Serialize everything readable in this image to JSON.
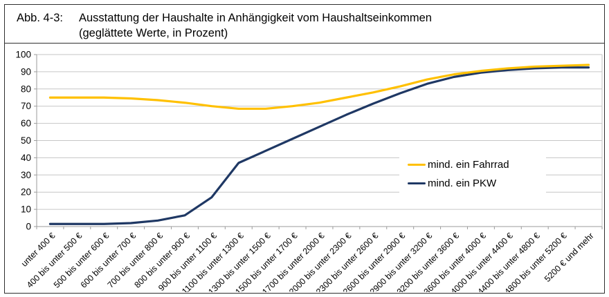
{
  "figure": {
    "label": "Abb. 4-3:",
    "title_line1": "Ausstattung der Haushalte in Anhängigkeit vom Haushaltseinkommen",
    "title_line2": "(geglättete Werte, in Prozent)"
  },
  "chart_data": {
    "type": "line",
    "title": "Ausstattung der Haushalte in Anhängigkeit vom Haushaltseinkommen (geglättete Werte, in Prozent)",
    "categories": [
      "unter 400 €",
      "400 bis unter 500 €",
      "500 bis unter 600 €",
      "600 bis unter 700 €",
      "700 bis unter 800 €",
      "800 bis unter 900 €",
      "900 bis unter 1100 €",
      "1100 bis unter 1300 €",
      "1300 bis unter 1500 €",
      "1500 bis unter 1700 €",
      "1700 bis unter 2000 €",
      "2000 bis unter 2300 €",
      "2300 bis unter 2600 €",
      "2600 bis unter 2900 €",
      "2900 bis unter 3200 €",
      "3200 bis unter 3600 €",
      "3600 bis unter 4000 €",
      "4000 bis unter 4400 €",
      "4400 bis unter 4800 €",
      "4800 bis unter 5200 €",
      "5200 € und mehr"
    ],
    "series": [
      {
        "name": "mind. ein Fahrrad",
        "color": "#FFC000",
        "values": [
          75,
          75,
          75,
          74.5,
          73.5,
          72,
          70,
          68.5,
          68.5,
          70,
          72,
          75,
          78,
          81.5,
          85.5,
          88.5,
          90.5,
          92,
          93,
          93.5,
          94
        ]
      },
      {
        "name": "mind. ein PKW",
        "color": "#1F3864",
        "values": [
          1.5,
          1.5,
          1.5,
          2,
          3.5,
          6.5,
          17,
          37,
          44,
          51,
          58,
          65,
          71.5,
          77.5,
          83,
          87,
          89.5,
          91,
          92,
          92.5,
          92.5
        ]
      }
    ],
    "ylim": [
      0,
      100
    ],
    "yticks": [
      0,
      10,
      20,
      30,
      40,
      50,
      60,
      70,
      80,
      90,
      100
    ],
    "xlabel": "",
    "ylabel": "",
    "grid": "horizontal-major",
    "legend_position": "inside-right-middle",
    "x_label_rotation_deg": 45
  },
  "colors": {
    "gridline": "#C6C6C6",
    "axis": "#9B9B9B",
    "frame_border": "#2e2e2e",
    "text": "#000000"
  }
}
